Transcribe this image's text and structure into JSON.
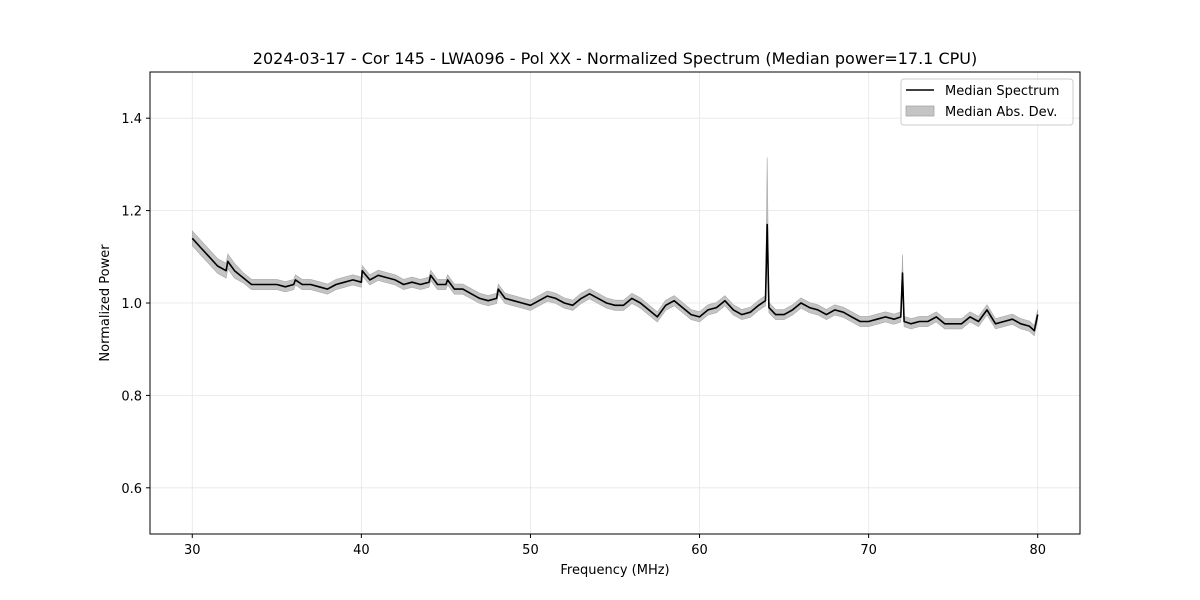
{
  "chart_data": {
    "type": "line",
    "title": "2024-03-17 - Cor 145 - LWA096 - Pol XX - Normalized Spectrum (Median power=17.1 CPU)",
    "xlabel": "Frequency (MHz)",
    "ylabel": "Normalized Power",
    "xlim": [
      27.5,
      82.5
    ],
    "ylim": [
      0.5,
      1.5
    ],
    "xticks": [
      30,
      40,
      50,
      60,
      70,
      80
    ],
    "yticks": [
      0.6,
      0.8,
      1.0,
      1.2,
      1.4
    ],
    "grid": true,
    "legend_position": "top-right",
    "series": [
      {
        "name": "Median Spectrum",
        "color": "#000000",
        "x": [
          30.0,
          30.5,
          31.0,
          31.5,
          32.0,
          32.1,
          32.5,
          33.0,
          33.5,
          34.0,
          34.5,
          35.0,
          35.5,
          36.0,
          36.1,
          36.5,
          37.0,
          37.5,
          38.0,
          38.5,
          39.0,
          39.5,
          40.0,
          40.05,
          40.5,
          41.0,
          41.5,
          42.0,
          42.5,
          43.0,
          43.5,
          44.0,
          44.1,
          44.5,
          45.0,
          45.1,
          45.5,
          46.0,
          46.5,
          47.0,
          47.5,
          48.0,
          48.1,
          48.5,
          49.0,
          49.5,
          50.0,
          50.5,
          51.0,
          51.5,
          52.0,
          52.5,
          53.0,
          53.5,
          54.0,
          54.5,
          55.0,
          55.5,
          56.0,
          56.5,
          57.0,
          57.5,
          58.0,
          58.5,
          59.0,
          59.5,
          60.0,
          60.5,
          61.0,
          61.5,
          62.0,
          62.5,
          63.0,
          63.5,
          63.9,
          64.0,
          64.1,
          64.5,
          65.0,
          65.5,
          66.0,
          66.5,
          67.0,
          67.5,
          68.0,
          68.5,
          69.0,
          69.5,
          70.0,
          70.5,
          71.0,
          71.5,
          71.9,
          72.0,
          72.1,
          72.5,
          73.0,
          73.5,
          74.0,
          74.5,
          75.0,
          75.5,
          76.0,
          76.5,
          77.0,
          77.5,
          78.0,
          78.5,
          79.0,
          79.5,
          79.8,
          80.0
        ],
        "values": [
          1.14,
          1.12,
          1.1,
          1.08,
          1.07,
          1.09,
          1.07,
          1.055,
          1.04,
          1.04,
          1.04,
          1.04,
          1.035,
          1.04,
          1.05,
          1.04,
          1.04,
          1.035,
          1.03,
          1.04,
          1.045,
          1.05,
          1.045,
          1.07,
          1.05,
          1.06,
          1.055,
          1.05,
          1.04,
          1.045,
          1.04,
          1.045,
          1.06,
          1.04,
          1.04,
          1.05,
          1.03,
          1.03,
          1.02,
          1.01,
          1.005,
          1.01,
          1.03,
          1.01,
          1.005,
          1.0,
          0.995,
          1.005,
          1.015,
          1.01,
          1.0,
          0.995,
          1.01,
          1.02,
          1.01,
          1.0,
          0.995,
          0.995,
          1.01,
          1.0,
          0.985,
          0.97,
          0.995,
          1.005,
          0.99,
          0.975,
          0.97,
          0.985,
          0.99,
          1.005,
          0.985,
          0.975,
          0.98,
          0.995,
          1.005,
          1.17,
          0.99,
          0.975,
          0.975,
          0.985,
          1.0,
          0.99,
          0.985,
          0.975,
          0.985,
          0.98,
          0.97,
          0.96,
          0.96,
          0.965,
          0.97,
          0.965,
          0.97,
          1.065,
          0.96,
          0.955,
          0.96,
          0.96,
          0.97,
          0.955,
          0.955,
          0.955,
          0.97,
          0.96,
          0.985,
          0.955,
          0.96,
          0.965,
          0.955,
          0.95,
          0.94,
          0.975
        ]
      }
    ],
    "band": {
      "name": "Median Abs. Dev.",
      "color": "#c4c4c4",
      "spikes": [
        {
          "x": 64.0,
          "upper": 1.315
        },
        {
          "x": 72.0,
          "upper": 1.105
        }
      ]
    }
  }
}
